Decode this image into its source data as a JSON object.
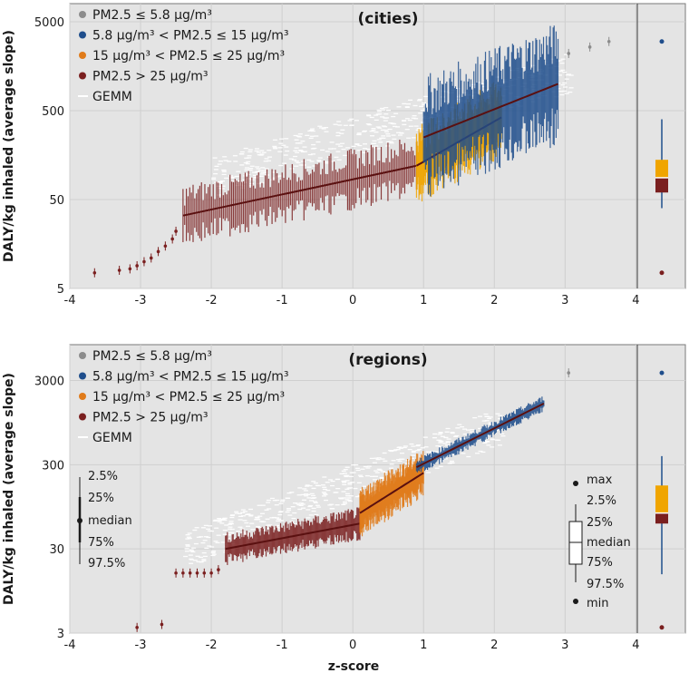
{
  "chart_data": [
    {
      "type": "scatter",
      "title": "(cities)",
      "xlabel": "",
      "ylabel": "DALY/kg inhaled (average slope)",
      "xlim": [
        -4,
        4.7
      ],
      "ylim_log": [
        5,
        8000
      ],
      "y_scale": "log",
      "x_ticks": [
        "-4",
        "-3",
        "-2",
        "-1",
        "0",
        "1",
        "2",
        "3",
        "4"
      ],
      "y_ticks": [
        {
          "label": "5",
          "value": 5
        },
        {
          "label": "50",
          "value": 50
        },
        {
          "label": "500",
          "value": 500
        },
        {
          "label": "5000",
          "value": 5000
        }
      ],
      "legend": [
        {
          "label": "PM2.5 ≤ 5.8 µg/m³",
          "color": "#8c8c8c",
          "marker": "dot"
        },
        {
          "label": "5.8 µg/m³ < PM2.5 ≤ 15 µg/m³",
          "color": "#1f4e8c",
          "marker": "dot"
        },
        {
          "label": "15 µg/m³ < PM2.5 ≤ 25 µg/m³",
          "color": "#e07b1a",
          "marker": "dot"
        },
        {
          "label": "PM2.5 > 25 µg/m³",
          "color": "#7a1f1f",
          "marker": "dot"
        },
        {
          "label": "GEMM",
          "color": "#ffffff",
          "marker": "line"
        }
      ],
      "series": [
        {
          "name": "PM2.5 > 25 µg/m³ (sparse tail)",
          "color": "#7a1f1f",
          "points": [
            [
              -3.65,
              7.5
            ],
            [
              -3.3,
              8
            ],
            [
              -3.15,
              8.3
            ],
            [
              -3.05,
              9
            ],
            [
              -2.95,
              10
            ],
            [
              -2.85,
              11
            ],
            [
              -2.75,
              13
            ],
            [
              -2.65,
              15
            ],
            [
              -2.55,
              18
            ],
            [
              -2.5,
              22
            ]
          ]
        },
        {
          "name": "PM2.5 > 25 µg/m³",
          "color": "#7a1f1f",
          "x": [
            -2.4,
            0.9
          ],
          "y": [
            33,
            120
          ],
          "spread": 0.35
        },
        {
          "name": "15 µg/m³ < PM2.5 ≤ 25 µg/m³",
          "color": "#f0a500",
          "x": [
            0.9,
            2.1
          ],
          "y": [
            120,
            420
          ],
          "spread": 0.45
        },
        {
          "name": "5.8 µg/m³ < PM2.5 ≤ 15 µg/m³",
          "color": "#1f4e8c",
          "x": [
            1.0,
            2.9
          ],
          "y": [
            250,
            1000
          ],
          "spread": 0.7
        },
        {
          "name": "PM2.5 ≤ 5.8 µg/m³",
          "color": "#8c8c8c",
          "points": [
            [
              3.05,
              2200
            ],
            [
              3.35,
              2600
            ],
            [
              3.62,
              3000
            ]
          ]
        }
      ],
      "gemm": {
        "x": [
          -2.0,
          3.1
        ],
        "y": [
          90,
          1400
        ]
      },
      "summary_box": {
        "min": 7.5,
        "p2_5": 40,
        "p25": 60,
        "median": 88,
        "p75": 140,
        "p97_5": 400,
        "max": 3000
      }
    },
    {
      "type": "scatter",
      "title": "(regions)",
      "xlabel": "z-score",
      "ylabel": "DALY/kg inhaled (average slope)",
      "xlim": [
        -4,
        4.7
      ],
      "ylim_log": [
        3,
        8000
      ],
      "y_scale": "log",
      "x_ticks": [
        "-4",
        "-3",
        "-2",
        "-1",
        "0",
        "1",
        "2",
        "3",
        "4"
      ],
      "y_ticks": [
        {
          "label": "3",
          "value": 3
        },
        {
          "label": "30",
          "value": 30
        },
        {
          "label": "300",
          "value": 300
        },
        {
          "label": "3000",
          "value": 3000
        }
      ],
      "legend": [
        {
          "label": "PM2.5 ≤ 5.8 µg/m³",
          "color": "#8c8c8c",
          "marker": "dot"
        },
        {
          "label": "5.8 µg/m³ < PM2.5 ≤ 15 µg/m³",
          "color": "#1f4e8c",
          "marker": "dot"
        },
        {
          "label": "15 µg/m³ < PM2.5 ≤ 25 µg/m³",
          "color": "#e07b1a",
          "marker": "dot"
        },
        {
          "label": "PM2.5 > 25 µg/m³",
          "color": "#7a1f1f",
          "marker": "dot"
        },
        {
          "label": "GEMM",
          "color": "#ffffff",
          "marker": "line"
        }
      ],
      "series": [
        {
          "name": "PM2.5 > 25 µg/m³ (sparse tail)",
          "color": "#7a1f1f",
          "points": [
            [
              -3.05,
              3.5
            ],
            [
              -2.7,
              3.8
            ],
            [
              -2.5,
              15.5
            ],
            [
              -2.4,
              15.5
            ],
            [
              -2.3,
              15.5
            ],
            [
              -2.2,
              15.5
            ],
            [
              -2.1,
              15.5
            ],
            [
              -2.0,
              15.5
            ],
            [
              -1.9,
              17
            ]
          ]
        },
        {
          "name": "PM2.5 > 25 µg/m³",
          "color": "#7a1f1f",
          "x": [
            -1.8,
            0.1
          ],
          "y": [
            30,
            60
          ],
          "spread": 0.2
        },
        {
          "name": "15 µg/m³ < PM2.5 ≤ 25 µg/m³",
          "color": "#e07b1a",
          "x": [
            0.1,
            1.0
          ],
          "y": [
            80,
            240
          ],
          "spread": 0.3
        },
        {
          "name": "5.8 µg/m³ < PM2.5 ≤ 15 µg/m³",
          "color": "#1f4e8c",
          "x": [
            0.9,
            2.7
          ],
          "y": [
            280,
            1600
          ],
          "spread": 0.1
        },
        {
          "name": "PM2.5 ≤ 5.8 µg/m³",
          "color": "#8c8c8c",
          "points": [
            [
              3.05,
              3700
            ]
          ]
        }
      ],
      "gemm": {
        "x": [
          -2.4,
          2.1
        ],
        "y": [
          30,
          900
        ]
      },
      "summary_box": {
        "min": 3.5,
        "p2_5": 15,
        "p25": 60,
        "median": 80,
        "p75": 170,
        "p97_5": 380,
        "max": 3700
      }
    }
  ],
  "key_left": [
    "2.5%",
    "25%",
    "median",
    "75%",
    "97.5%"
  ],
  "key_right": [
    "max",
    "2.5%",
    "25%",
    "median",
    "75%",
    "97.5%",
    "min"
  ]
}
